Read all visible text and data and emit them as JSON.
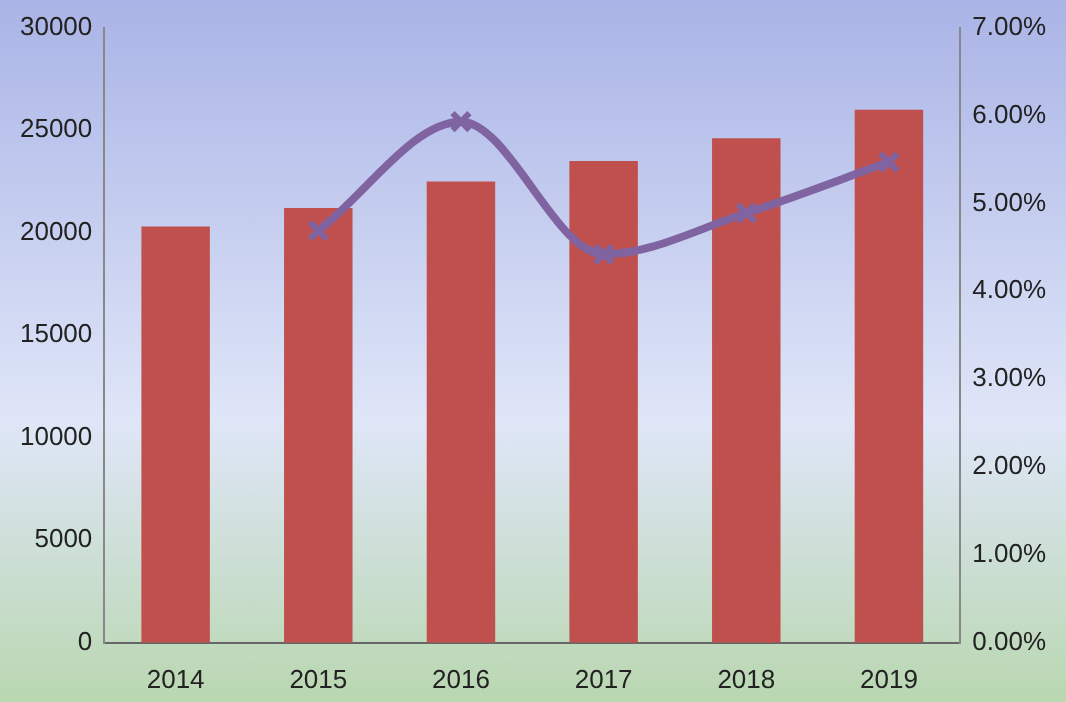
{
  "chart_data": {
    "type": "bar",
    "categories": [
      "2014",
      "2015",
      "2016",
      "2017",
      "2018",
      "2019"
    ],
    "series": [
      {
        "color": "#c0504d",
        "values": [
          20300,
          21200,
          22500,
          23500,
          24600,
          26000
        ]
      },
      {
        "type": "line",
        "axis": "y2",
        "color": "#8064a2",
        "values": [
          null,
          4.69,
          5.93,
          4.42,
          4.89,
          5.47
        ]
      }
    ],
    "ylim": [
      0,
      30000
    ],
    "yticks": [
      0,
      5000,
      10000,
      15000,
      20000,
      25000,
      30000
    ],
    "y2lim": [
      0,
      7
    ],
    "y2ticks": [
      {
        "value": 0,
        "label": "0.00%"
      },
      {
        "value": 1,
        "label": "1.00%"
      },
      {
        "value": 2,
        "label": "2.00%"
      },
      {
        "value": 3,
        "label": "3.00%"
      },
      {
        "value": 4,
        "label": "4.00%"
      },
      {
        "value": 5,
        "label": "5.00%"
      },
      {
        "value": 6,
        "label": "6.00%"
      },
      {
        "value": 7,
        "label": "7.00%"
      }
    ],
    "marker": "cross",
    "legend": false,
    "grid": false
  }
}
